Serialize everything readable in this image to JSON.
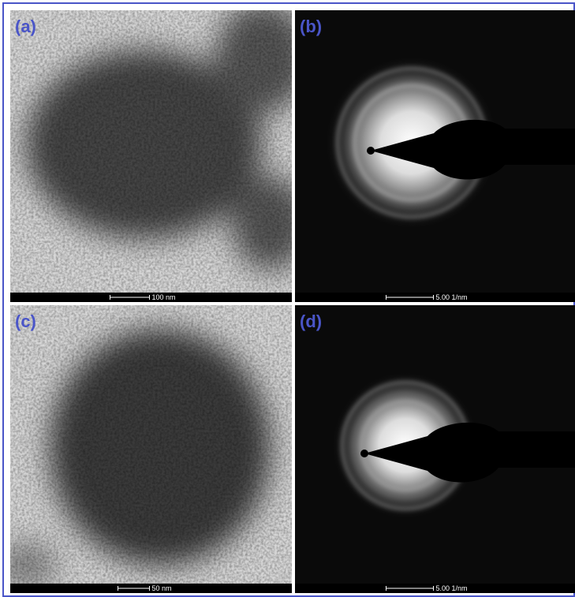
{
  "panels": [
    {
      "label": "(a)",
      "scale_bar": "100 nm"
    },
    {
      "label": "(b)",
      "scale_bar": "5.00 1/nm"
    },
    {
      "label": "(c)",
      "scale_bar": "50 nm"
    },
    {
      "label": "(d)",
      "scale_bar": "5.00 1/nm"
    }
  ]
}
